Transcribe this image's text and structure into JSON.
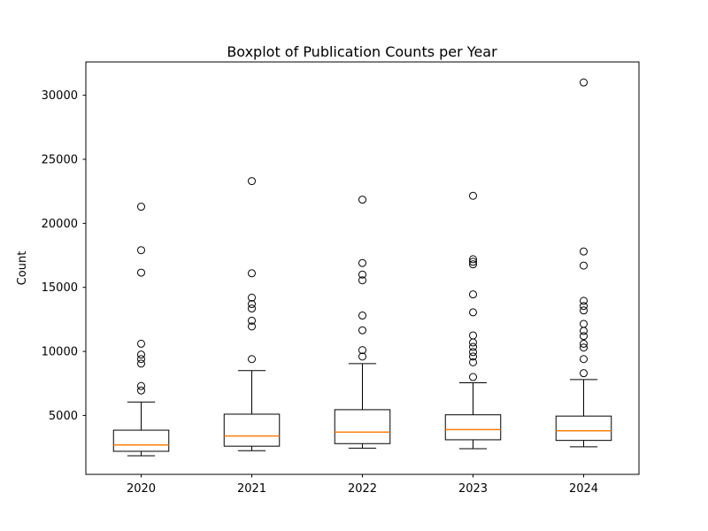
{
  "figure": {
    "title": "Boxplot of Publication Counts per Year",
    "ylabel": "Count",
    "background": "#ffffff",
    "frame_color": "#000000",
    "median_color": "#ff7f0e",
    "outlier_stroke": "#000000"
  },
  "chart_data": {
    "type": "boxplot",
    "title": "Boxplot of Publication Counts per Year",
    "xlabel": "",
    "ylabel": "Count",
    "categories": [
      "2020",
      "2021",
      "2022",
      "2023",
      "2024"
    ],
    "yticks": [
      5000,
      10000,
      15000,
      20000,
      25000,
      30000
    ],
    "ylim": [
      400,
      32600
    ],
    "grid": false,
    "legend": "none",
    "series": [
      {
        "label": "2020",
        "whislo": 1850,
        "q1": 2200,
        "med": 2700,
        "q3": 3850,
        "whishi": 6050,
        "outliers": [
          21300,
          17900,
          16150,
          10600,
          9750,
          9400,
          9050,
          7300,
          6950
        ]
      },
      {
        "label": "2021",
        "whislo": 2250,
        "q1": 2600,
        "med": 3400,
        "q3": 5100,
        "whishi": 8500,
        "outliers": [
          23300,
          16100,
          14200,
          13700,
          13350,
          12400,
          11950,
          9400
        ]
      },
      {
        "label": "2022",
        "whislo": 2450,
        "q1": 2800,
        "med": 3700,
        "q3": 5450,
        "whishi": 9050,
        "outliers": [
          21850,
          16900,
          16000,
          15550,
          12800,
          11650,
          10100,
          9600
        ]
      },
      {
        "label": "2023",
        "whislo": 2400,
        "q1": 3100,
        "med": 3900,
        "q3": 5050,
        "whishi": 7550,
        "outliers": [
          22150,
          17200,
          17000,
          16800,
          14450,
          13050,
          11250,
          10700,
          10350,
          9950,
          9600,
          9150,
          8000
        ]
      },
      {
        "label": "2024",
        "whislo": 2550,
        "q1": 3050,
        "med": 3800,
        "q3": 4950,
        "whishi": 7800,
        "outliers": [
          31000,
          17800,
          16700,
          13950,
          13550,
          13200,
          12150,
          11600,
          11200,
          10600,
          10300,
          9400,
          8300
        ]
      }
    ]
  }
}
